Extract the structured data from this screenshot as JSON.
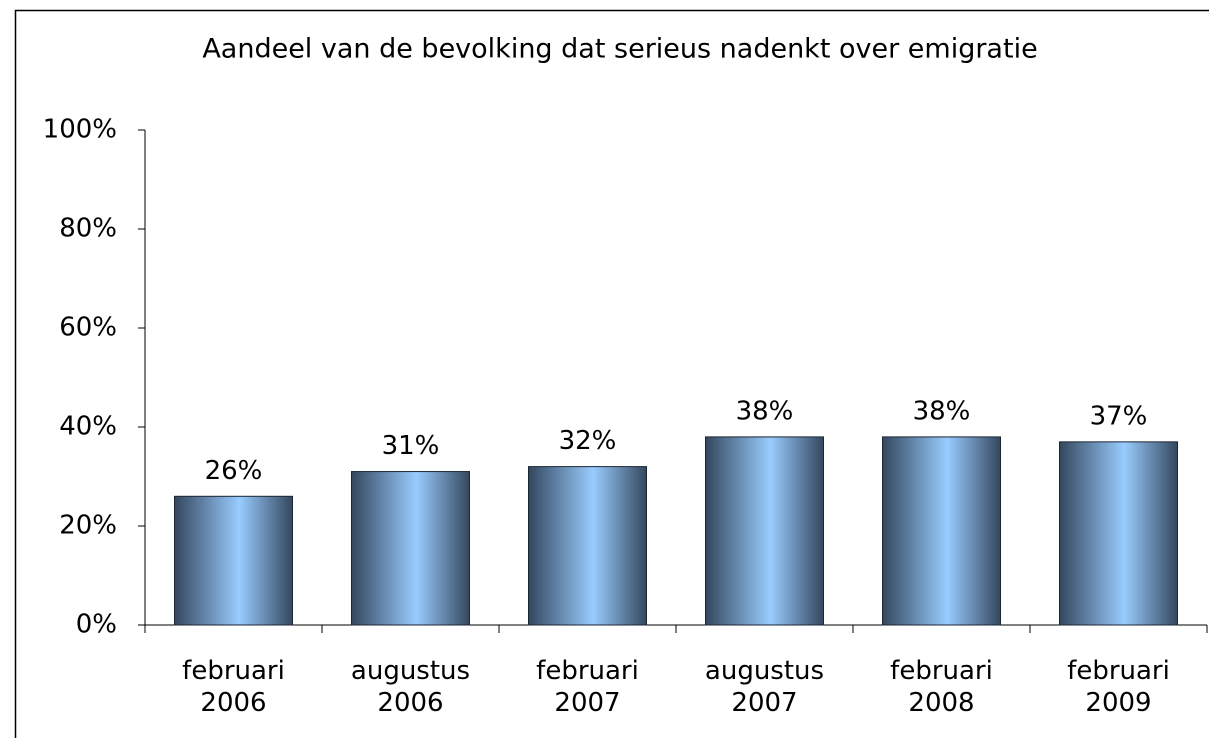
{
  "chart_data": {
    "type": "bar",
    "title": "Aandeel van de bevolking dat serieus nadenkt over emigratie",
    "categories": [
      "februari 2006",
      "augustus 2006",
      "februari 2007",
      "augustus 2007",
      "februari 2008",
      "februari 2009"
    ],
    "values": [
      26,
      31,
      32,
      38,
      38,
      37
    ],
    "value_labels": [
      "26%",
      "31%",
      "32%",
      "38%",
      "38%",
      "37%"
    ],
    "color": "#99ccff",
    "ylim": [
      0,
      100
    ],
    "yticks": [
      {
        "value": 0,
        "label": "0%"
      },
      {
        "value": 20,
        "label": "20%"
      },
      {
        "value": 40,
        "label": "40%"
      },
      {
        "value": 60,
        "label": "60%"
      },
      {
        "value": 80,
        "label": "80%"
      },
      {
        "value": 100,
        "label": "100%"
      }
    ],
    "grid": false
  }
}
